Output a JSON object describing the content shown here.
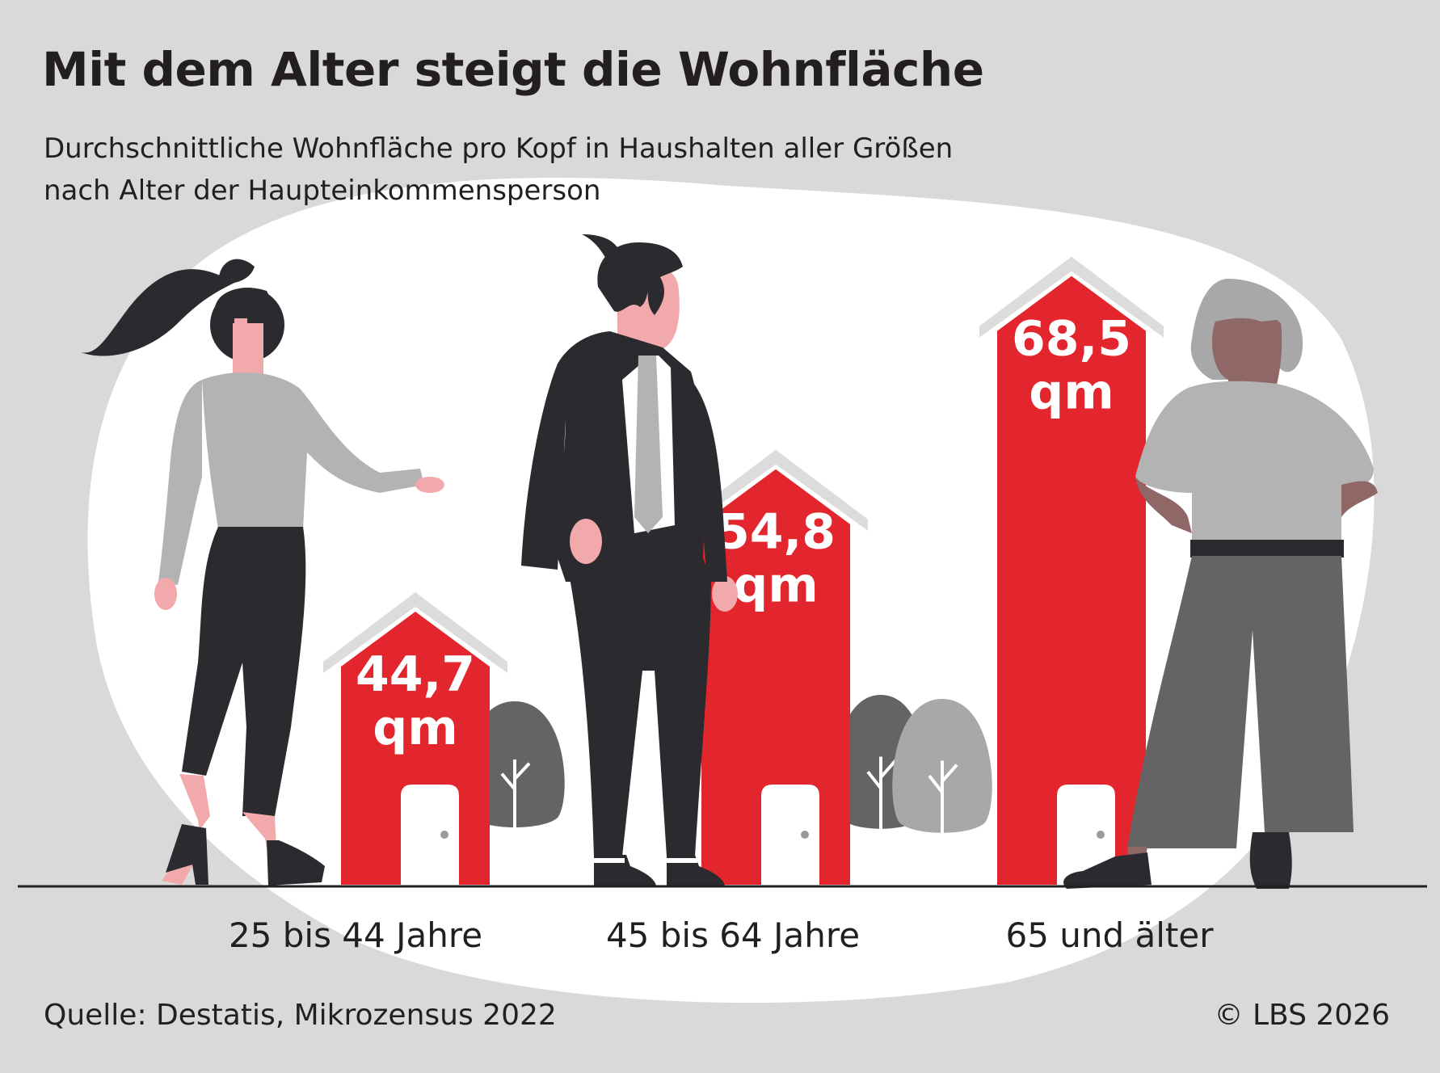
{
  "header": {
    "title": "Mit dem Alter steigt die Wohnfläche",
    "subtitle_line1": "Durchschnittliche Wohnfläche pro Kopf in Haushalten aller Größen",
    "subtitle_line2": "nach Alter der Haupteinkommensperson"
  },
  "footer": {
    "source": "Quelle: Destatis, Mikrozensus 2022",
    "copyright": "© LBS 2026"
  },
  "colors": {
    "background": "#d9d9d9",
    "blob": "#ffffff",
    "house": "#e3262d",
    "roof": "#dcdcdc",
    "text": "#231f20",
    "tree_dark": "#646464",
    "tree_light": "#a8a8a8",
    "person_dark": "#2b2a2e",
    "person_gray": "#b3b3b3",
    "skin": "#f2a9ab",
    "skin_dark": "#8f6767"
  },
  "chart_data": {
    "type": "bar",
    "categories": [
      "25 bis 44 Jahre",
      "45 bis 64 Jahre",
      "65 und älter"
    ],
    "values": [
      44.7,
      54.8,
      68.5
    ],
    "value_labels": [
      [
        "44,7",
        "qm"
      ],
      [
        "54,8",
        "qm"
      ],
      [
        "68,5",
        "qm"
      ]
    ],
    "unit": "qm"
  }
}
